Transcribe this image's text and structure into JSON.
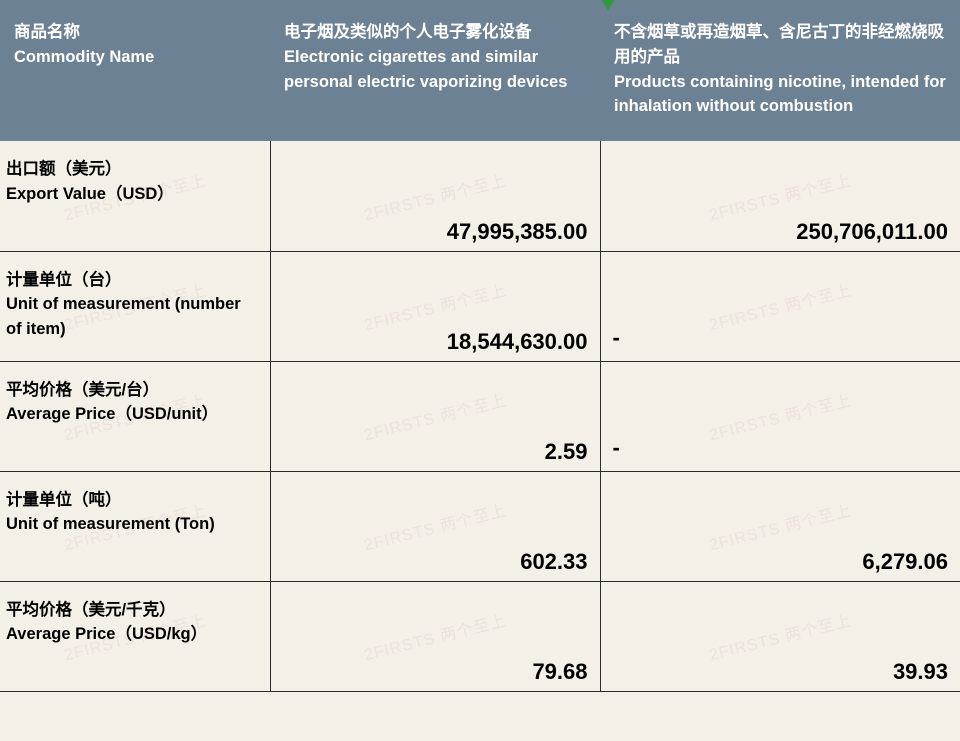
{
  "header": {
    "row_label_zh": "商品名称",
    "row_label_en": "Commodity Name",
    "col1_zh": "电子烟及类似的个人电子雾化设备",
    "col1_en": "Electronic cigarettes and similar personal electric vaporizing devices",
    "col2_zh": "不含烟草或再造烟草、含尼古丁的非经燃烧吸用的产品",
    "col2_en": "Products containing nicotine, intended for inhalation without combustion"
  },
  "rows": [
    {
      "label_zh": "出口额（美元）",
      "label_en": " Export Value（USD）",
      "v1": "47,995,385.00",
      "v2": "250,706,011.00"
    },
    {
      "label_zh": "计量单位（台）",
      "label_en": "Unit of measurement (number of item)",
      "v1": "18,544,630.00",
      "v2": "-"
    },
    {
      "label_zh": "平均价格（美元/台）",
      "label_en": "Average Price（USD/unit）",
      "v1": "2.59",
      "v2": "-"
    },
    {
      "label_zh": "计量单位（吨）",
      "label_en": "Unit of measurement (Ton)",
      "v1": "602.33",
      "v2": "6,279.06"
    },
    {
      "label_zh": "平均价格（美元/千克）",
      "label_en": "Average Price（USD/kg）",
      "v1": "79.68",
      "v2": "39.93"
    }
  ],
  "colors": {
    "header_bg": "#6c8194",
    "header_text": "#ffffff",
    "body_bg": "#f4f0e8",
    "border": "#2b2b2b",
    "indicator": "#2e9a3f"
  }
}
